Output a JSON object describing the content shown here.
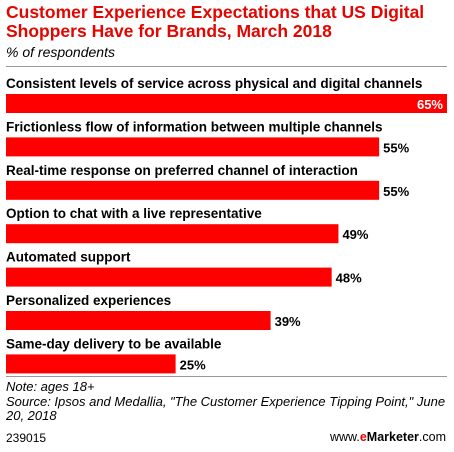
{
  "header": {
    "title": "Customer Experience Expectations that US Digital Shoppers Have for Brands, March 2018",
    "subtitle": "% of respondents"
  },
  "chart_data": {
    "type": "bar",
    "orientation": "horizontal",
    "categories": [
      "Consistent levels of service across physical and digital channels",
      "Frictionless flow of information between multiple channels",
      "Real-time response on preferred channel of interaction",
      "Option to chat with a live representative",
      "Automated support",
      "Personalized experiences",
      "Same-day delivery to be available"
    ],
    "values": [
      65,
      55,
      55,
      49,
      48,
      39,
      25
    ],
    "value_labels": [
      "65%",
      "55%",
      "55%",
      "49%",
      "48%",
      "39%",
      "25%"
    ],
    "xlim": [
      0,
      65
    ],
    "bar_color": "#ff0000",
    "grid": false,
    "legend": "none"
  },
  "footer": {
    "note": "Note: ages 18+",
    "source": "Source: Ipsos and Medallia, \"The Customer Experience Tipping Point,\" June 20, 2018",
    "id": "239015",
    "brand_prefix": "www.",
    "brand_e": "e",
    "brand_name": "Marketer",
    "brand_suffix": ".com"
  }
}
